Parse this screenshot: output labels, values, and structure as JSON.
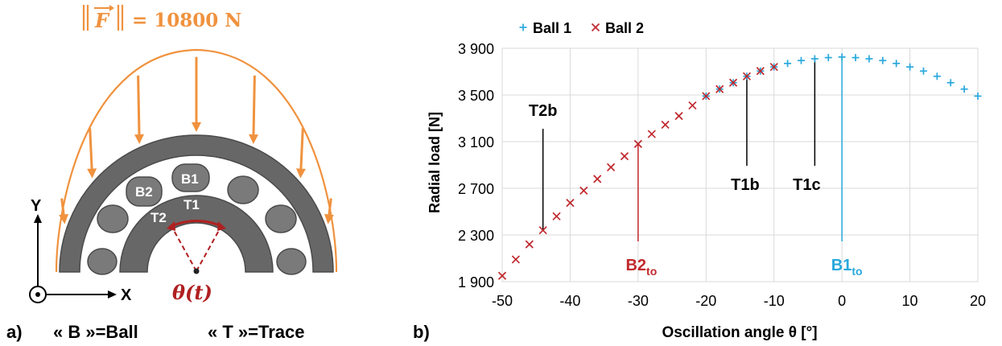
{
  "panel_a": {
    "force_prefix": "F",
    "force_value": "= 10800 N",
    "ball_labels": [
      "B2",
      "B1"
    ],
    "trace_labels": [
      "T2",
      "T1"
    ],
    "theta_label": "θ(t)",
    "axis_y": "Y",
    "axis_x": "X",
    "panel_letter": "a)",
    "caption_ball": "« B »=Ball",
    "caption_trace": "« T »=Trace",
    "colors": {
      "force": "#f0923e",
      "ring": "#676767",
      "angle": "#b02020"
    }
  },
  "panel_b": {
    "panel_letter": "b)",
    "annotations": [
      {
        "text": "T2b",
        "x": -44,
        "y": 2340,
        "color": "#000000"
      },
      {
        "text": "B2",
        "sub": "to",
        "x": -30,
        "y": 3080,
        "color": "#c0282d"
      },
      {
        "text": "T1b",
        "x": -14,
        "y": 3660,
        "color": "#000000"
      },
      {
        "text": "T1c",
        "x": -4,
        "y": 3800,
        "color": "#000000"
      },
      {
        "text": "B1",
        "sub": "to",
        "x": 0,
        "y": 3830,
        "color": "#29a8dc"
      }
    ]
  },
  "chart_data": {
    "type": "scatter",
    "xlabel": "Oscillation angle θ [°]",
    "ylabel": "Radial load [N]",
    "xlim": [
      -50,
      20
    ],
    "ylim": [
      1900,
      3900
    ],
    "xticks": [
      -50,
      -40,
      -30,
      -20,
      -10,
      0,
      10,
      20
    ],
    "yticks": [
      1900,
      2300,
      2700,
      3100,
      3500,
      3900
    ],
    "ytick_labels": [
      "1 900",
      "2 300",
      "2 700",
      "3 100",
      "3 500",
      "3 900"
    ],
    "grid": true,
    "legend": "top-left",
    "series": [
      {
        "name": "Ball 1",
        "marker": "+",
        "color": "#29a8dc",
        "x": [
          -20,
          -18,
          -16,
          -14,
          -12,
          -10,
          -8,
          -6,
          -4,
          -2,
          0,
          2,
          4,
          6,
          8,
          10,
          12,
          14,
          16,
          18,
          20
        ],
        "y": [
          3490,
          3550,
          3605,
          3660,
          3705,
          3740,
          3770,
          3795,
          3810,
          3820,
          3825,
          3820,
          3810,
          3795,
          3770,
          3740,
          3705,
          3660,
          3605,
          3550,
          3490
        ]
      },
      {
        "name": "Ball 2",
        "marker": "x",
        "color": "#c0282d",
        "x": [
          -50,
          -48,
          -46,
          -44,
          -42,
          -40,
          -38,
          -36,
          -34,
          -32,
          -30,
          -28,
          -26,
          -24,
          -22,
          -20,
          -18,
          -16,
          -14,
          -12,
          -10
        ],
        "y": [
          1950,
          2090,
          2220,
          2340,
          2460,
          2575,
          2680,
          2780,
          2880,
          2975,
          3080,
          3165,
          3245,
          3320,
          3410,
          3490,
          3550,
          3605,
          3660,
          3705,
          3740
        ]
      }
    ]
  }
}
